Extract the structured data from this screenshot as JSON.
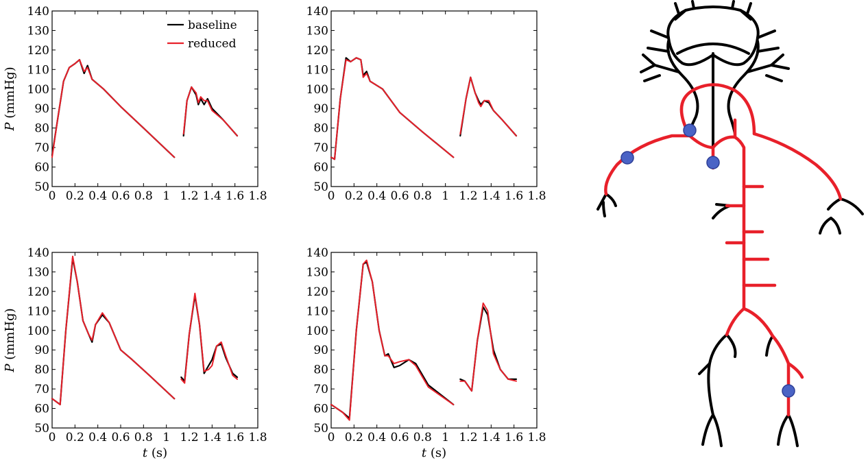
{
  "colors": {
    "baseline": "#000000",
    "reduced": "#e8202a",
    "marker": "#4a63c5",
    "marker_edge": "#2e3f96"
  },
  "chart_data": [
    {
      "type": "line",
      "panel": "top-left",
      "xlim": [
        0,
        1.8
      ],
      "ylim": [
        50,
        140
      ],
      "xticks": [
        "0",
        "0.2",
        "0.4",
        "0.6",
        "0.8",
        "1",
        "1.2",
        "1.4",
        "1.6",
        "1.8"
      ],
      "yticks": [
        "50",
        "60",
        "70",
        "80",
        "90",
        "100",
        "110",
        "120",
        "130",
        "140"
      ],
      "ylabel": {
        "var": "P",
        "unit": " (mmHg)"
      },
      "xlabel": null,
      "legend": {
        "position": "top-right",
        "entries": [
          "baseline",
          "reduced"
        ]
      },
      "series": [
        {
          "name": "baseline",
          "segments": [
            [
              [
                0,
                66
              ],
              [
                0.05,
                85
              ],
              [
                0.1,
                104
              ],
              [
                0.15,
                111
              ],
              [
                0.2,
                113
              ],
              [
                0.24,
                115
              ],
              [
                0.28,
                108
              ],
              [
                0.31,
                112
              ],
              [
                0.35,
                105
              ],
              [
                0.45,
                100
              ],
              [
                0.6,
                91
              ],
              [
                0.8,
                80
              ],
              [
                1.07,
                65
              ]
            ],
            [
              [
                1.15,
                76
              ],
              [
                1.18,
                94
              ],
              [
                1.22,
                101
              ],
              [
                1.26,
                97
              ],
              [
                1.28,
                92
              ],
              [
                1.3,
                95
              ],
              [
                1.33,
                92
              ],
              [
                1.36,
                95
              ],
              [
                1.4,
                90
              ],
              [
                1.5,
                84
              ],
              [
                1.62,
                76
              ]
            ]
          ]
        },
        {
          "name": "reduced",
          "segments": [
            [
              [
                0,
                65
              ],
              [
                0.05,
                85
              ],
              [
                0.1,
                104
              ],
              [
                0.15,
                111
              ],
              [
                0.2,
                113
              ],
              [
                0.24,
                115
              ],
              [
                0.28,
                109
              ],
              [
                0.31,
                111
              ],
              [
                0.35,
                105
              ],
              [
                0.45,
                100
              ],
              [
                0.6,
                91
              ],
              [
                0.8,
                80
              ],
              [
                1.07,
                65
              ]
            ],
            [
              [
                1.15,
                77
              ],
              [
                1.18,
                94
              ],
              [
                1.22,
                101
              ],
              [
                1.26,
                98
              ],
              [
                1.28,
                93
              ],
              [
                1.3,
                96
              ],
              [
                1.33,
                94
              ],
              [
                1.36,
                94
              ],
              [
                1.4,
                89
              ],
              [
                1.5,
                84
              ],
              [
                1.62,
                76
              ]
            ]
          ]
        }
      ]
    },
    {
      "type": "line",
      "panel": "top-middle",
      "xlim": [
        0,
        1.8
      ],
      "ylim": [
        50,
        140
      ],
      "xticks": [
        "0",
        "0.2",
        "0.4",
        "0.6",
        "0.8",
        "1",
        "1.2",
        "1.4",
        "1.6",
        "1.8"
      ],
      "yticks": [
        "50",
        "60",
        "70",
        "80",
        "90",
        "100",
        "110",
        "120",
        "130",
        "140"
      ],
      "ylabel": null,
      "xlabel": null,
      "series": [
        {
          "name": "baseline",
          "segments": [
            [
              [
                0,
                65
              ],
              [
                0.03,
                64
              ],
              [
                0.08,
                95
              ],
              [
                0.13,
                116
              ],
              [
                0.17,
                114
              ],
              [
                0.22,
                116
              ],
              [
                0.26,
                115
              ],
              [
                0.28,
                107
              ],
              [
                0.31,
                109
              ],
              [
                0.34,
                104
              ],
              [
                0.45,
                100
              ],
              [
                0.6,
                88
              ],
              [
                0.8,
                78
              ],
              [
                1.07,
                65
              ]
            ],
            [
              [
                1.13,
                76
              ],
              [
                1.18,
                95
              ],
              [
                1.22,
                106
              ],
              [
                1.26,
                98
              ],
              [
                1.29,
                94
              ],
              [
                1.31,
                92
              ],
              [
                1.34,
                94
              ],
              [
                1.38,
                93
              ],
              [
                1.42,
                89
              ],
              [
                1.5,
                84
              ],
              [
                1.62,
                76
              ]
            ]
          ]
        },
        {
          "name": "reduced",
          "segments": [
            [
              [
                0,
                65
              ],
              [
                0.03,
                64
              ],
              [
                0.08,
                95
              ],
              [
                0.13,
                115
              ],
              [
                0.17,
                114
              ],
              [
                0.22,
                116
              ],
              [
                0.26,
                115
              ],
              [
                0.28,
                106
              ],
              [
                0.31,
                108
              ],
              [
                0.34,
                104
              ],
              [
                0.45,
                100
              ],
              [
                0.6,
                88
              ],
              [
                0.8,
                78
              ],
              [
                1.07,
                65
              ]
            ],
            [
              [
                1.13,
                77
              ],
              [
                1.18,
                95
              ],
              [
                1.22,
                106
              ],
              [
                1.26,
                98
              ],
              [
                1.29,
                93
              ],
              [
                1.31,
                91
              ],
              [
                1.34,
                94
              ],
              [
                1.38,
                94
              ],
              [
                1.42,
                89
              ],
              [
                1.5,
                84
              ],
              [
                1.62,
                76
              ]
            ]
          ]
        }
      ]
    },
    {
      "type": "line",
      "panel": "bottom-left",
      "xlim": [
        0,
        1.8
      ],
      "ylim": [
        50,
        140
      ],
      "xticks": [
        "0",
        "0.2",
        "0.4",
        "0.6",
        "0.8",
        "1",
        "1.2",
        "1.4",
        "1.6",
        "1.8"
      ],
      "yticks": [
        "50",
        "60",
        "70",
        "80",
        "90",
        "100",
        "110",
        "120",
        "130",
        "140"
      ],
      "ylabel": {
        "var": "P",
        "unit": " (mmHg)"
      },
      "xlabel": {
        "var": "t",
        "unit": " (s)"
      },
      "series": [
        {
          "name": "baseline",
          "segments": [
            [
              [
                0,
                65
              ],
              [
                0.07,
                62
              ],
              [
                0.12,
                100
              ],
              [
                0.18,
                137
              ],
              [
                0.22,
                125
              ],
              [
                0.27,
                105
              ],
              [
                0.32,
                98
              ],
              [
                0.35,
                94
              ],
              [
                0.38,
                103
              ],
              [
                0.44,
                108
              ],
              [
                0.5,
                104
              ],
              [
                0.6,
                90
              ],
              [
                0.7,
                85
              ],
              [
                0.85,
                77
              ],
              [
                1.07,
                65
              ]
            ],
            [
              [
                1.13,
                76
              ],
              [
                1.16,
                74
              ],
              [
                1.2,
                98
              ],
              [
                1.25,
                118
              ],
              [
                1.29,
                103
              ],
              [
                1.33,
                78
              ],
              [
                1.37,
                82
              ],
              [
                1.4,
                85
              ],
              [
                1.44,
                92
              ],
              [
                1.48,
                93
              ],
              [
                1.52,
                86
              ],
              [
                1.58,
                78
              ],
              [
                1.62,
                76
              ]
            ]
          ]
        },
        {
          "name": "reduced",
          "segments": [
            [
              [
                0,
                65
              ],
              [
                0.07,
                62
              ],
              [
                0.12,
                100
              ],
              [
                0.18,
                138
              ],
              [
                0.22,
                125
              ],
              [
                0.27,
                105
              ],
              [
                0.32,
                98
              ],
              [
                0.35,
                95
              ],
              [
                0.38,
                103
              ],
              [
                0.44,
                109
              ],
              [
                0.5,
                104
              ],
              [
                0.6,
                90
              ],
              [
                0.7,
                85
              ],
              [
                0.85,
                77
              ],
              [
                1.07,
                65
              ]
            ],
            [
              [
                1.13,
                75
              ],
              [
                1.16,
                73
              ],
              [
                1.2,
                98
              ],
              [
                1.25,
                119
              ],
              [
                1.29,
                103
              ],
              [
                1.33,
                79
              ],
              [
                1.37,
                80
              ],
              [
                1.4,
                82
              ],
              [
                1.44,
                92
              ],
              [
                1.48,
                94
              ],
              [
                1.52,
                87
              ],
              [
                1.58,
                77
              ],
              [
                1.62,
                75
              ]
            ]
          ]
        }
      ]
    },
    {
      "type": "line",
      "panel": "bottom-middle",
      "xlim": [
        0,
        1.8
      ],
      "ylim": [
        50,
        140
      ],
      "xticks": [
        "0",
        "0.2",
        "0.4",
        "0.6",
        "0.8",
        "1",
        "1.2",
        "1.4",
        "1.6",
        "1.8"
      ],
      "yticks": [
        "50",
        "60",
        "70",
        "80",
        "90",
        "100",
        "110",
        "120",
        "130",
        "140"
      ],
      "ylabel": null,
      "xlabel": {
        "var": "t",
        "unit": " (s)"
      },
      "series": [
        {
          "name": "baseline",
          "segments": [
            [
              [
                0,
                62
              ],
              [
                0.1,
                58
              ],
              [
                0.16,
                55
              ],
              [
                0.22,
                100
              ],
              [
                0.28,
                134
              ],
              [
                0.31,
                135
              ],
              [
                0.36,
                125
              ],
              [
                0.42,
                100
              ],
              [
                0.47,
                87
              ],
              [
                0.5,
                88
              ],
              [
                0.55,
                81
              ],
              [
                0.6,
                82
              ],
              [
                0.68,
                85
              ],
              [
                0.74,
                83
              ],
              [
                0.85,
                72
              ],
              [
                1.07,
                62
              ]
            ],
            [
              [
                1.13,
                75
              ],
              [
                1.17,
                74
              ],
              [
                1.23,
                69
              ],
              [
                1.28,
                95
              ],
              [
                1.33,
                112
              ],
              [
                1.37,
                108
              ],
              [
                1.42,
                90
              ],
              [
                1.48,
                80
              ],
              [
                1.55,
                75
              ],
              [
                1.62,
                75
              ]
            ]
          ]
        },
        {
          "name": "reduced",
          "segments": [
            [
              [
                0,
                62
              ],
              [
                0.1,
                58
              ],
              [
                0.16,
                54
              ],
              [
                0.22,
                100
              ],
              [
                0.28,
                134
              ],
              [
                0.31,
                136
              ],
              [
                0.36,
                125
              ],
              [
                0.42,
                100
              ],
              [
                0.47,
                87
              ],
              [
                0.5,
                87
              ],
              [
                0.55,
                83
              ],
              [
                0.6,
                84
              ],
              [
                0.68,
                85
              ],
              [
                0.74,
                82
              ],
              [
                0.85,
                71
              ],
              [
                1.07,
                62
              ]
            ],
            [
              [
                1.13,
                74
              ],
              [
                1.17,
                74
              ],
              [
                1.23,
                69
              ],
              [
                1.28,
                95
              ],
              [
                1.33,
                114
              ],
              [
                1.37,
                110
              ],
              [
                1.42,
                88
              ],
              [
                1.48,
                80
              ],
              [
                1.55,
                75
              ],
              [
                1.62,
                74
              ]
            ]
          ]
        }
      ]
    }
  ]
}
